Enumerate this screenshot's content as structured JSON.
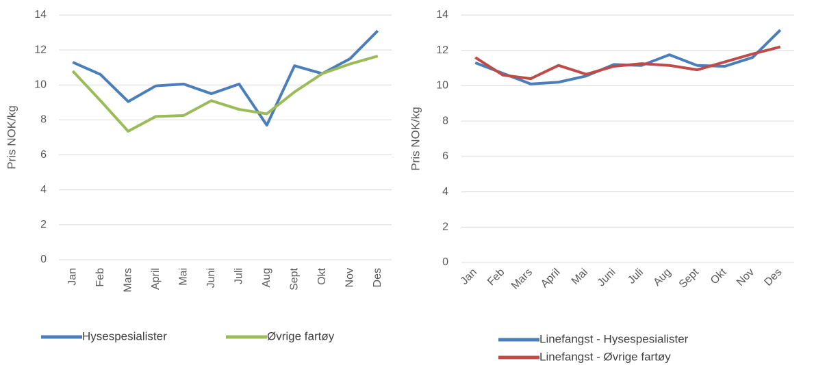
{
  "chart_data": [
    {
      "type": "line",
      "y_label": "Pris NOK/kg",
      "categories": [
        "Jan",
        "Feb",
        "Mars",
        "April",
        "Mai",
        "Juni",
        "Juli",
        "Aug",
        "Sept",
        "Okt",
        "Nov",
        "Des"
      ],
      "series": [
        {
          "name": "Hysespesialister",
          "color": "#4a7ebb",
          "values": [
            11.3,
            10.6,
            9.05,
            9.95,
            10.05,
            9.5,
            10.05,
            7.7,
            11.1,
            10.65,
            11.5,
            13.1
          ]
        },
        {
          "name": "Øvrige fartøy",
          "color": "#9bbb59",
          "values": [
            10.8,
            9.1,
            7.35,
            8.2,
            8.25,
            9.1,
            8.6,
            8.35,
            9.6,
            10.65,
            11.2,
            11.65
          ]
        }
      ],
      "ylim": [
        0,
        14
      ],
      "yticks": [
        0,
        2,
        4,
        6,
        8,
        10,
        12,
        14
      ],
      "grid": true
    },
    {
      "type": "line",
      "y_label": "Pris NOK/kg",
      "categories": [
        "Jan",
        "Feb",
        "Mars",
        "April",
        "Mai",
        "Juni",
        "Juli",
        "Aug",
        "Sept",
        "Okt",
        "Nov",
        "Des"
      ],
      "series": [
        {
          "name": "Linefangst - Hysespesialister",
          "color": "#4a7ebb",
          "values": [
            11.3,
            10.7,
            10.1,
            10.2,
            10.55,
            11.2,
            11.15,
            11.75,
            11.15,
            11.1,
            11.6,
            13.15
          ]
        },
        {
          "name": "Linefangst - Øvrige fartøy",
          "color": "#be4b48",
          "values": [
            11.6,
            10.6,
            10.4,
            11.15,
            10.65,
            11.1,
            11.25,
            11.15,
            10.9,
            11.35,
            11.8,
            12.2
          ]
        }
      ],
      "ylim": [
        0,
        14
      ],
      "yticks": [
        0,
        2,
        4,
        6,
        8,
        10,
        12,
        14
      ],
      "grid": true
    }
  ]
}
